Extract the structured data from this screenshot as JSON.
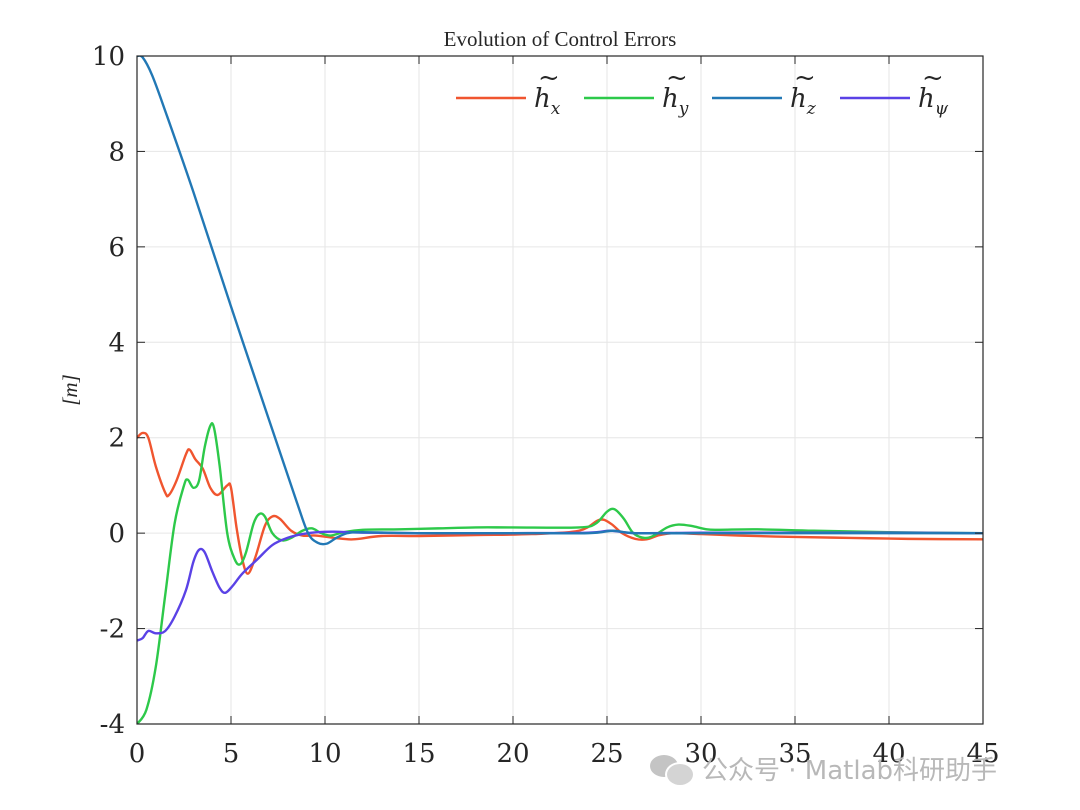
{
  "chart_data": {
    "type": "line",
    "title": "Evolution of Control Errors",
    "xlabel": "",
    "ylabel": "[m]",
    "xlim": [
      0,
      45
    ],
    "ylim": [
      -4,
      10
    ],
    "x_ticks": [
      0,
      5,
      10,
      15,
      20,
      25,
      30,
      35,
      40,
      45
    ],
    "y_ticks": [
      -4,
      -2,
      0,
      2,
      4,
      6,
      8,
      10
    ],
    "grid": true,
    "legend_position": "top-right",
    "legend_orientation": "horizontal",
    "series": [
      {
        "name": "h̃x",
        "symbol": "h",
        "subscript": "x",
        "color": "#f0552f",
        "points": [
          [
            0,
            2.0
          ],
          [
            0.3,
            2.1
          ],
          [
            0.6,
            2.0
          ],
          [
            1.0,
            1.4
          ],
          [
            1.5,
            0.85
          ],
          [
            1.7,
            0.8
          ],
          [
            2.1,
            1.1
          ],
          [
            2.6,
            1.65
          ],
          [
            2.8,
            1.75
          ],
          [
            3.1,
            1.55
          ],
          [
            3.5,
            1.35
          ],
          [
            3.9,
            0.95
          ],
          [
            4.3,
            0.8
          ],
          [
            4.8,
            1.0
          ],
          [
            5.0,
            0.95
          ],
          [
            5.3,
            0.1
          ],
          [
            5.6,
            -0.55
          ],
          [
            5.9,
            -0.85
          ],
          [
            6.3,
            -0.5
          ],
          [
            6.8,
            0.15
          ],
          [
            7.2,
            0.35
          ],
          [
            7.6,
            0.3
          ],
          [
            8.2,
            0.05
          ],
          [
            8.8,
            -0.05
          ],
          [
            9.5,
            -0.05
          ],
          [
            10.5,
            -0.1
          ],
          [
            11.5,
            -0.13
          ],
          [
            13,
            -0.06
          ],
          [
            15,
            -0.06
          ],
          [
            18,
            -0.04
          ],
          [
            21,
            -0.02
          ],
          [
            23.5,
            0.05
          ],
          [
            24.6,
            0.28
          ],
          [
            25.2,
            0.2
          ],
          [
            25.8,
            0.0
          ],
          [
            26.5,
            -0.12
          ],
          [
            27.1,
            -0.13
          ],
          [
            27.8,
            -0.04
          ],
          [
            28.6,
            0.0
          ],
          [
            30,
            -0.02
          ],
          [
            32,
            -0.05
          ],
          [
            35,
            -0.08
          ],
          [
            38,
            -0.1
          ],
          [
            41,
            -0.12
          ],
          [
            45,
            -0.13
          ]
        ]
      },
      {
        "name": "h̃y",
        "symbol": "h",
        "subscript": "y",
        "color": "#2dc94a",
        "points": [
          [
            0,
            -4.0
          ],
          [
            0.5,
            -3.7
          ],
          [
            1.0,
            -2.8
          ],
          [
            1.5,
            -1.3
          ],
          [
            2.0,
            0.2
          ],
          [
            2.5,
            1.0
          ],
          [
            2.7,
            1.12
          ],
          [
            3.0,
            0.95
          ],
          [
            3.3,
            1.1
          ],
          [
            3.6,
            1.8
          ],
          [
            3.9,
            2.25
          ],
          [
            4.1,
            2.2
          ],
          [
            4.4,
            1.4
          ],
          [
            4.8,
            0.0
          ],
          [
            5.2,
            -0.55
          ],
          [
            5.5,
            -0.65
          ],
          [
            5.8,
            -0.4
          ],
          [
            6.2,
            0.2
          ],
          [
            6.5,
            0.4
          ],
          [
            6.8,
            0.35
          ],
          [
            7.2,
            0.0
          ],
          [
            7.7,
            -0.15
          ],
          [
            8.2,
            -0.1
          ],
          [
            8.8,
            0.05
          ],
          [
            9.3,
            0.1
          ],
          [
            9.8,
            0.0
          ],
          [
            10.3,
            -0.05
          ],
          [
            11,
            0.02
          ],
          [
            12,
            0.07
          ],
          [
            14,
            0.08
          ],
          [
            16,
            0.1
          ],
          [
            18,
            0.12
          ],
          [
            20,
            0.12
          ],
          [
            23.5,
            0.12
          ],
          [
            24.4,
            0.2
          ],
          [
            25,
            0.45
          ],
          [
            25.4,
            0.5
          ],
          [
            25.9,
            0.3
          ],
          [
            26.4,
            0.0
          ],
          [
            27.0,
            -0.1
          ],
          [
            27.5,
            -0.05
          ],
          [
            28.2,
            0.12
          ],
          [
            28.8,
            0.18
          ],
          [
            29.5,
            0.15
          ],
          [
            30.3,
            0.08
          ],
          [
            31,
            0.07
          ],
          [
            33,
            0.08
          ],
          [
            36,
            0.05
          ],
          [
            40,
            0.02
          ],
          [
            45,
            0.0
          ]
        ]
      },
      {
        "name": "h̃z",
        "symbol": "h",
        "subscript": "z",
        "color": "#2278b5",
        "points": [
          [
            0,
            10.0
          ],
          [
            0.3,
            9.97
          ],
          [
            0.8,
            9.6
          ],
          [
            1.5,
            8.85
          ],
          [
            3,
            7.15
          ],
          [
            5,
            4.75
          ],
          [
            7,
            2.4
          ],
          [
            8.5,
            0.65
          ],
          [
            9.1,
            0.0
          ],
          [
            9.6,
            -0.2
          ],
          [
            10.1,
            -0.22
          ],
          [
            10.6,
            -0.1
          ],
          [
            11.2,
            0.0
          ],
          [
            12,
            0.02
          ],
          [
            15,
            0.0
          ],
          [
            20,
            0.0
          ],
          [
            24,
            0.0
          ],
          [
            25.3,
            0.05
          ],
          [
            26.5,
            0.0
          ],
          [
            30,
            0.0
          ],
          [
            35,
            0.0
          ],
          [
            40,
            0.0
          ],
          [
            45,
            0.0
          ]
        ]
      },
      {
        "name": "h̃ψ",
        "symbol": "h",
        "subscript": "ψ",
        "color": "#5a42e6",
        "points": [
          [
            0,
            -2.25
          ],
          [
            0.3,
            -2.2
          ],
          [
            0.6,
            -2.05
          ],
          [
            1.0,
            -2.1
          ],
          [
            1.5,
            -2.05
          ],
          [
            2.0,
            -1.75
          ],
          [
            2.6,
            -1.2
          ],
          [
            3.0,
            -0.6
          ],
          [
            3.3,
            -0.35
          ],
          [
            3.6,
            -0.4
          ],
          [
            4.0,
            -0.8
          ],
          [
            4.4,
            -1.15
          ],
          [
            4.7,
            -1.25
          ],
          [
            5.1,
            -1.1
          ],
          [
            5.6,
            -0.85
          ],
          [
            6.4,
            -0.55
          ],
          [
            7.2,
            -0.25
          ],
          [
            8.0,
            -0.1
          ],
          [
            8.8,
            -0.02
          ],
          [
            9.6,
            0.02
          ],
          [
            10.5,
            0.03
          ],
          [
            12,
            0.01
          ],
          [
            15,
            0.0
          ],
          [
            20,
            0.0
          ],
          [
            24,
            0.01
          ],
          [
            25.2,
            0.05
          ],
          [
            26.5,
            0.0
          ],
          [
            30,
            0.01
          ],
          [
            35,
            0.01
          ],
          [
            40,
            0.01
          ],
          [
            45,
            0.0
          ]
        ]
      }
    ]
  },
  "watermark": {
    "icon": "wechat-icon",
    "text": "公众号 · Matlab科研助手"
  }
}
